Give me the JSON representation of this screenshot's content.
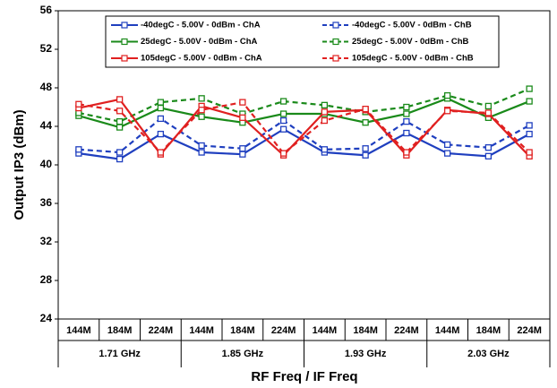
{
  "chart_data": {
    "type": "line",
    "y_label": "Output IP3 (dBm)",
    "x_label": "RF Freq / IF Freq",
    "categories": [
      "144M",
      "184M",
      "224M",
      "144M",
      "184M",
      "224M",
      "144M",
      "184M",
      "224M",
      "144M",
      "184M",
      "224M"
    ],
    "groups": [
      "1.71 GHz",
      "1.85 GHz",
      "1.93 GHz",
      "2.03 GHz"
    ],
    "ylim": [
      24,
      56
    ],
    "yticks": [
      24,
      28,
      32,
      36,
      40,
      44,
      48,
      52,
      56
    ],
    "grid": false,
    "legend": "top",
    "marker": "square",
    "series": [
      {
        "name": "-40degC - 5.00V - 0dBm - ChA",
        "color": "#1f3fbf",
        "dashed": false,
        "values": [
          41.2,
          40.6,
          43.2,
          41.3,
          41.1,
          43.7,
          41.3,
          41.0,
          43.3,
          41.2,
          40.9,
          43.2
        ]
      },
      {
        "name": "-40degC - 5.00V - 0dBm - ChB",
        "color": "#1f3fbf",
        "dashed": true,
        "values": [
          41.6,
          41.3,
          44.8,
          42.0,
          41.7,
          44.6,
          41.6,
          41.7,
          44.5,
          42.1,
          41.8,
          44.1
        ]
      },
      {
        "name": "25degC - 5.00V - 0dBm - ChA",
        "color": "#1a8a1a",
        "dashed": false,
        "values": [
          45.1,
          43.9,
          45.9,
          45.0,
          44.4,
          45.3,
          45.3,
          44.4,
          45.3,
          46.9,
          44.9,
          46.6
        ]
      },
      {
        "name": "25degC - 5.00V - 0dBm - ChB",
        "color": "#1a8a1a",
        "dashed": true,
        "values": [
          45.4,
          44.5,
          46.5,
          46.9,
          45.3,
          46.6,
          46.2,
          45.5,
          46.0,
          47.2,
          46.1,
          47.9
        ]
      },
      {
        "name": "105degC - 5.00V - 0dBm - ChA",
        "color": "#e02020",
        "dashed": false,
        "values": [
          45.9,
          46.8,
          41.1,
          46.1,
          44.9,
          41.0,
          45.5,
          45.7,
          41.0,
          45.7,
          45.3,
          40.9
        ]
      },
      {
        "name": "105degC - 5.00V - 0dBm - ChB",
        "color": "#e02020",
        "dashed": true,
        "values": [
          46.3,
          45.6,
          41.3,
          45.7,
          46.5,
          41.2,
          44.6,
          45.8,
          41.3,
          45.6,
          45.4,
          41.3
        ]
      }
    ]
  }
}
